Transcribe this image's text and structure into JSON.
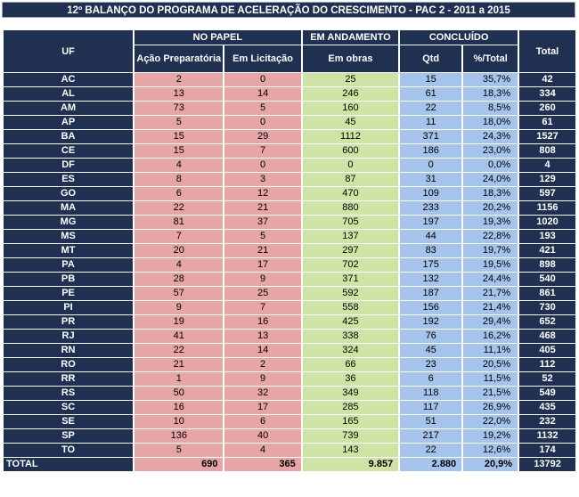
{
  "title": "12º BALANÇO DO PROGRAMA DE ACELERAÇÃO DO CRESCIMENTO - PAC 2 - 2011 a 2015",
  "headers": {
    "uf": "UF",
    "no_papel": "NO PAPEL",
    "em_andamento": "EM ANDAMENTO",
    "concluido": "CONCLUÍDO",
    "total": "Total",
    "acao_preparatoria": "Ação Preparatória",
    "em_licitacao": "Em Licitação",
    "em_obras": "Em obras",
    "qtd": "Qtd",
    "pct_total": "%/Total"
  },
  "rows": [
    {
      "uf": "AC",
      "acao": "2",
      "licit": "0",
      "obras": "25",
      "qtd": "15",
      "pct": "35,7%",
      "total": "42"
    },
    {
      "uf": "AL",
      "acao": "13",
      "licit": "14",
      "obras": "246",
      "qtd": "61",
      "pct": "18,3%",
      "total": "334"
    },
    {
      "uf": "AM",
      "acao": "73",
      "licit": "5",
      "obras": "160",
      "qtd": "22",
      "pct": "8,5%",
      "total": "260"
    },
    {
      "uf": "AP",
      "acao": "5",
      "licit": "0",
      "obras": "45",
      "qtd": "11",
      "pct": "18,0%",
      "total": "61"
    },
    {
      "uf": "BA",
      "acao": "15",
      "licit": "29",
      "obras": "1112",
      "qtd": "371",
      "pct": "24,3%",
      "total": "1527"
    },
    {
      "uf": "CE",
      "acao": "15",
      "licit": "7",
      "obras": "600",
      "qtd": "186",
      "pct": "23,0%",
      "total": "808"
    },
    {
      "uf": "DF",
      "acao": "4",
      "licit": "0",
      "obras": "0",
      "qtd": "0",
      "pct": "0,0%",
      "total": "4"
    },
    {
      "uf": "ES",
      "acao": "8",
      "licit": "3",
      "obras": "87",
      "qtd": "31",
      "pct": "24,0%",
      "total": "129"
    },
    {
      "uf": "GO",
      "acao": "6",
      "licit": "12",
      "obras": "470",
      "qtd": "109",
      "pct": "18,3%",
      "total": "597"
    },
    {
      "uf": "MA",
      "acao": "22",
      "licit": "21",
      "obras": "880",
      "qtd": "233",
      "pct": "20,2%",
      "total": "1156"
    },
    {
      "uf": "MG",
      "acao": "81",
      "licit": "37",
      "obras": "705",
      "qtd": "197",
      "pct": "19,3%",
      "total": "1020"
    },
    {
      "uf": "MS",
      "acao": "7",
      "licit": "5",
      "obras": "137",
      "qtd": "44",
      "pct": "22,8%",
      "total": "193"
    },
    {
      "uf": "MT",
      "acao": "20",
      "licit": "21",
      "obras": "297",
      "qtd": "83",
      "pct": "19,7%",
      "total": "421"
    },
    {
      "uf": "PA",
      "acao": "4",
      "licit": "17",
      "obras": "702",
      "qtd": "175",
      "pct": "19,5%",
      "total": "898"
    },
    {
      "uf": "PB",
      "acao": "28",
      "licit": "9",
      "obras": "371",
      "qtd": "132",
      "pct": "24,4%",
      "total": "540"
    },
    {
      "uf": "PE",
      "acao": "57",
      "licit": "25",
      "obras": "592",
      "qtd": "187",
      "pct": "21,7%",
      "total": "861"
    },
    {
      "uf": "PI",
      "acao": "9",
      "licit": "7",
      "obras": "558",
      "qtd": "156",
      "pct": "21,4%",
      "total": "730"
    },
    {
      "uf": "PR",
      "acao": "19",
      "licit": "16",
      "obras": "425",
      "qtd": "192",
      "pct": "29,4%",
      "total": "652"
    },
    {
      "uf": "RJ",
      "acao": "41",
      "licit": "13",
      "obras": "338",
      "qtd": "76",
      "pct": "16,2%",
      "total": "468"
    },
    {
      "uf": "RN",
      "acao": "22",
      "licit": "14",
      "obras": "324",
      "qtd": "45",
      "pct": "11,1%",
      "total": "405"
    },
    {
      "uf": "RO",
      "acao": "21",
      "licit": "2",
      "obras": "66",
      "qtd": "23",
      "pct": "20,5%",
      "total": "112"
    },
    {
      "uf": "RR",
      "acao": "1",
      "licit": "9",
      "obras": "36",
      "qtd": "6",
      "pct": "11,5%",
      "total": "52"
    },
    {
      "uf": "RS",
      "acao": "50",
      "licit": "32",
      "obras": "349",
      "qtd": "118",
      "pct": "21,5%",
      "total": "549"
    },
    {
      "uf": "SC",
      "acao": "16",
      "licit": "17",
      "obras": "285",
      "qtd": "117",
      "pct": "26,9%",
      "total": "435"
    },
    {
      "uf": "SE",
      "acao": "10",
      "licit": "6",
      "obras": "165",
      "qtd": "51",
      "pct": "22,0%",
      "total": "232"
    },
    {
      "uf": "SP",
      "acao": "136",
      "licit": "40",
      "obras": "739",
      "qtd": "217",
      "pct": "19,2%",
      "total": "1132"
    },
    {
      "uf": "TO",
      "acao": "5",
      "licit": "4",
      "obras": "143",
      "qtd": "22",
      "pct": "12,6%",
      "total": "174"
    }
  ],
  "total_row": {
    "uf": "TOTAL",
    "acao": "690",
    "licit": "365",
    "obras": "9.857",
    "qtd": "2.880",
    "pct": "20,9%",
    "total": "13792"
  },
  "colors": {
    "header": "#1f3050",
    "no_papel": "#e6a6a6",
    "em_andamento": "#cfe3a6",
    "concluido": "#a6c3ea"
  }
}
